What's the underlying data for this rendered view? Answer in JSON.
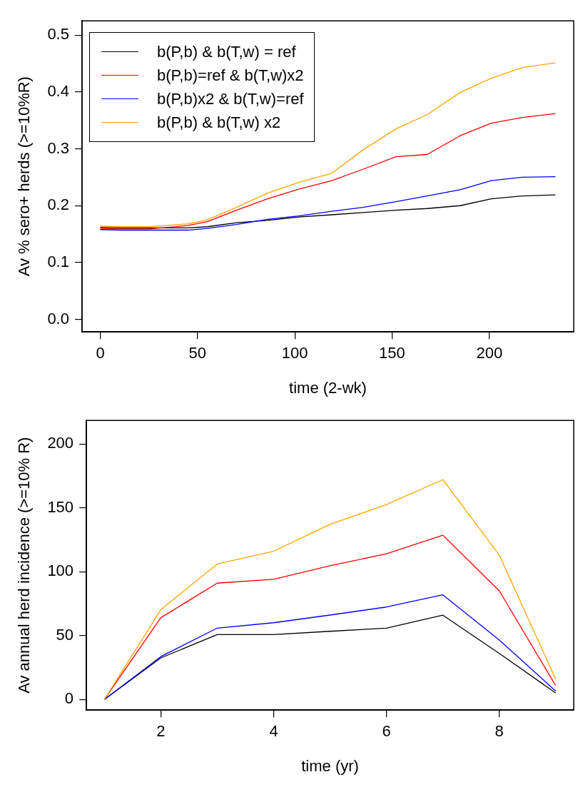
{
  "chart_data": [
    {
      "type": "line",
      "xlabel": "time (2-wk)",
      "ylabel": "Av % sero+ herds (>=10%R)",
      "xlim": [
        -9.36,
        243.36
      ],
      "xticks": [
        0,
        50,
        100,
        150,
        200
      ],
      "ylim": [
        -0.022,
        0.525
      ],
      "yticks": [
        {
          "value": 0,
          "label": "0.0"
        },
        {
          "value": 0.1,
          "label": "0.1"
        },
        {
          "value": 0.2,
          "label": "0.2"
        },
        {
          "value": 0.3,
          "label": "0.3"
        },
        {
          "value": 0.4,
          "label": "0.4"
        },
        {
          "value": 0.5,
          "label": "0.5"
        }
      ],
      "grid": false,
      "legend": "top left",
      "x": [
        0,
        10,
        25,
        45,
        55,
        70,
        86,
        102,
        119,
        135,
        152,
        168,
        185,
        201,
        217,
        234
      ],
      "series": [
        {
          "name": "b(P,b) & b(T,w) = ref",
          "color": "#000000",
          "values": [
            0.162,
            0.161,
            0.161,
            0.161,
            0.163,
            0.17,
            0.174,
            0.18,
            0.184,
            0.188,
            0.192,
            0.195,
            0.2,
            0.212,
            0.217,
            0.219
          ]
        },
        {
          "name": "b(P,b)=ref & b(T,w)x2",
          "color": "#ff0000",
          "values": [
            0.16,
            0.159,
            0.159,
            0.165,
            0.172,
            0.192,
            0.212,
            0.229,
            0.244,
            0.264,
            0.286,
            0.29,
            0.323,
            0.345,
            0.355,
            0.362
          ]
        },
        {
          "name": "b(P,b)x2 & b(T,w)=ref",
          "color": "#0000ff",
          "values": [
            0.158,
            0.157,
            0.157,
            0.157,
            0.16,
            0.167,
            0.176,
            0.182,
            0.19,
            0.197,
            0.207,
            0.217,
            0.228,
            0.244,
            0.25,
            0.251
          ]
        },
        {
          "name": "b(P,b) & b(T,w) x2",
          "color": "#ffa500",
          "values": [
            0.164,
            0.163,
            0.163,
            0.168,
            0.175,
            0.197,
            0.222,
            0.241,
            0.257,
            0.298,
            0.335,
            0.36,
            0.399,
            0.424,
            0.443,
            0.451
          ]
        }
      ]
    },
    {
      "type": "line",
      "xlabel": "time (yr)",
      "ylabel": "Av annual herd incidence (>=10% R)",
      "xlim": [
        0.68,
        9.32
      ],
      "xticks": [
        2,
        4,
        6,
        8
      ],
      "ylim": [
        -8.4,
        218.4
      ],
      "yticks": [
        0,
        50,
        100,
        150,
        200
      ],
      "grid": false,
      "x": [
        1,
        2,
        3,
        4,
        5,
        6,
        7,
        8,
        9
      ],
      "series": [
        {
          "color": "#000000",
          "values": [
            0,
            32.5,
            50.7,
            50.7,
            53.3,
            55.8,
            65.9,
            36,
            5
          ]
        },
        {
          "color": "#ff0000",
          "values": [
            0,
            64,
            91,
            94,
            104.6,
            114,
            128.5,
            85,
            10.7
          ]
        },
        {
          "color": "#0000ff",
          "values": [
            0,
            33.5,
            55.8,
            60,
            66,
            72.3,
            81.8,
            46.5,
            6.5
          ]
        },
        {
          "color": "#ffa500",
          "values": [
            0,
            70.3,
            106,
            116,
            137,
            152.5,
            172,
            113,
            15.8
          ]
        }
      ]
    }
  ]
}
